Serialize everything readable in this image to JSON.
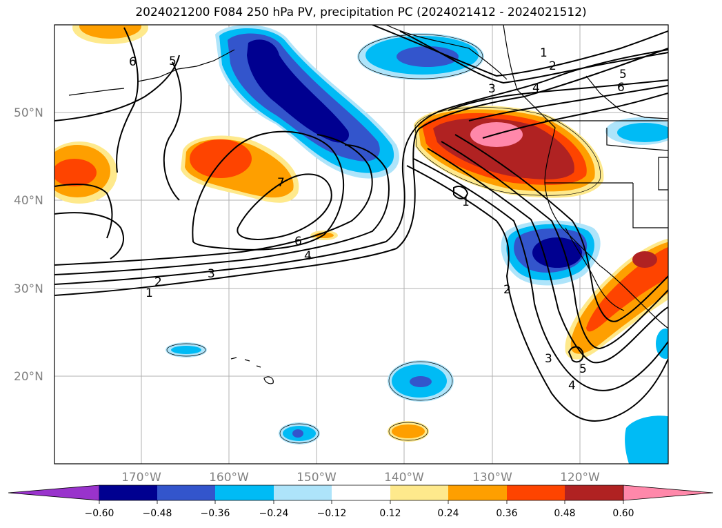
{
  "title": "2024021200 F084 250 hPa PV, precipitation PC (2024021412 - 2024021512)",
  "latitude_labels": [
    "50°N",
    "40°N",
    "30°N",
    "20°N"
  ],
  "longitude_labels": [
    "170°W",
    "160°W",
    "150°W",
    "140°W",
    "130°W",
    "120°W"
  ],
  "colorbar": {
    "tick_labels": [
      "−0.60",
      "−0.48",
      "−0.36",
      "−0.24",
      "−0.12",
      "0.12",
      "0.24",
      "0.36",
      "0.48",
      "0.60"
    ],
    "colors": [
      "#9933cc",
      "#000090",
      "#3355cc",
      "#00bbf5",
      "#aee4fa",
      "#ffffff",
      "#fee98c",
      "#fe9f00",
      "#fe4400",
      "#b02222",
      "#ff88aa"
    ]
  },
  "contour_labels": [
    "1",
    "2",
    "3",
    "4",
    "5",
    "6",
    "7"
  ],
  "shading_colors": {
    "neg_strong": "#000090",
    "neg_mid": "#3355cc",
    "neg_weak": "#00bbf5",
    "neg_faint": "#aee4fa",
    "pos_faint": "#fee98c",
    "pos_weak": "#fe9f00",
    "pos_mid": "#fe4400",
    "pos_strong": "#b02222",
    "pos_max": "#ff88aa"
  }
}
